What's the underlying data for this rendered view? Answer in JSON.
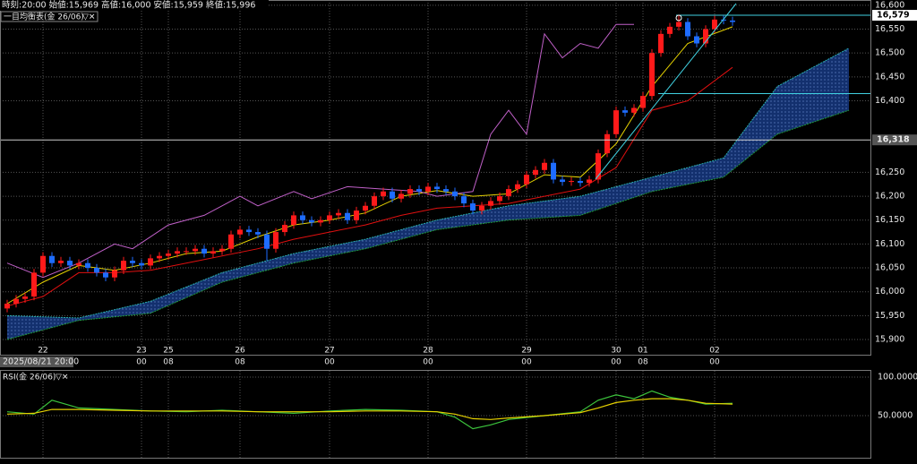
{
  "header": "時刻:20:00 始値:15,969 高値:16,000 安値:15,959 終値:15,996",
  "cursor_label": "2025/08/21 20:00",
  "chart_data": [
    {
      "type": "candlestick",
      "title": "一目均衡表(金 26/06)",
      "open": [
        15965,
        15975,
        15985,
        15990,
        16040,
        16075,
        16060,
        16065,
        16055,
        16060,
        16050,
        16040,
        16030,
        16045,
        16065,
        16060,
        16055,
        16070,
        16075,
        16080,
        16085,
        16085,
        16090,
        16080,
        16085,
        16090,
        16120,
        16130,
        16125,
        16120,
        16090,
        16125,
        16140,
        16160,
        16150,
        16145,
        16150,
        16160,
        16165,
        16150,
        16170,
        16180,
        16200,
        16210,
        16195,
        16205,
        16215,
        16210,
        16220,
        16215,
        16210,
        16200,
        16185,
        16170,
        16180,
        16190,
        16200,
        16215,
        16225,
        16245,
        16255,
        16270,
        16235,
        16230,
        16232,
        16228,
        16235,
        16290,
        16330,
        16380,
        16375,
        16385,
        16410,
        16500,
        16540,
        16555,
        16565,
        16535,
        16520,
        16550,
        16570,
        16568
      ],
      "high": [
        15983,
        15993,
        15998,
        16048,
        16083,
        16083,
        16073,
        16073,
        16068,
        16068,
        16058,
        16048,
        16053,
        16073,
        16073,
        16068,
        16078,
        16083,
        16088,
        16093,
        16093,
        16098,
        16098,
        16093,
        16098,
        16128,
        16138,
        16138,
        16133,
        16128,
        16133,
        16148,
        16168,
        16168,
        16158,
        16158,
        16168,
        16173,
        16173,
        16178,
        16188,
        16208,
        16218,
        16218,
        16213,
        16223,
        16223,
        16228,
        16228,
        16223,
        16218,
        16208,
        16193,
        16188,
        16198,
        16208,
        16223,
        16233,
        16253,
        16263,
        16278,
        16278,
        16243,
        16240,
        16240,
        16243,
        16298,
        16338,
        16388,
        16388,
        16393,
        16418,
        16508,
        16548,
        16563,
        16580,
        16573,
        16543,
        16558,
        16578,
        16578,
        16576
      ],
      "low": [
        15957,
        15967,
        15977,
        15982,
        16032,
        16052,
        16052,
        16047,
        16047,
        16042,
        16032,
        16022,
        16022,
        16037,
        16052,
        16047,
        16047,
        16062,
        16067,
        16072,
        16077,
        16077,
        16072,
        16072,
        16077,
        16082,
        16112,
        16117,
        16112,
        16065,
        16082,
        16117,
        16132,
        16142,
        16137,
        16137,
        16142,
        16152,
        16142,
        16142,
        16162,
        16172,
        16192,
        16187,
        16187,
        16197,
        16202,
        16202,
        16207,
        16202,
        16192,
        16177,
        16162,
        16162,
        16172,
        16182,
        16192,
        16207,
        16217,
        16237,
        16247,
        16227,
        16222,
        16222,
        16220,
        16220,
        16227,
        16282,
        16322,
        16367,
        16367,
        16377,
        16402,
        16492,
        16532,
        16547,
        16527,
        16512,
        16512,
        16542,
        16560,
        16557
      ],
      "close": [
        15975,
        15985,
        15990,
        16040,
        16075,
        16060,
        16065,
        16055,
        16060,
        16050,
        16040,
        16030,
        16045,
        16065,
        16060,
        16055,
        16070,
        16075,
        16080,
        16085,
        16085,
        16090,
        16080,
        16085,
        16090,
        16120,
        16130,
        16125,
        16120,
        16090,
        16125,
        16140,
        16160,
        16150,
        16145,
        16150,
        16160,
        16165,
        16150,
        16170,
        16180,
        16200,
        16210,
        16195,
        16205,
        16215,
        16210,
        16220,
        16215,
        16210,
        16200,
        16185,
        16170,
        16180,
        16190,
        16200,
        16215,
        16225,
        16245,
        16255,
        16270,
        16235,
        16230,
        16232,
        16228,
        16235,
        16290,
        16330,
        16380,
        16375,
        16385,
        16410,
        16500,
        16540,
        16555,
        16565,
        16535,
        16520,
        16550,
        16570,
        16568,
        16565
      ],
      "up_color": "#ff1a1a",
      "down_color": "#1e6cff",
      "ylim": [
        15870,
        16611
      ],
      "yticks": [
        {
          "value": 16600,
          "label": "16,600"
        },
        {
          "value": 16550,
          "label": "16,550"
        },
        {
          "value": 16500,
          "label": "16,500"
        },
        {
          "value": 16450,
          "label": "16,450"
        },
        {
          "value": 16400,
          "label": "16,400"
        },
        {
          "value": 16250,
          "label": "16,250"
        },
        {
          "value": 16200,
          "label": "16,200"
        },
        {
          "value": 16150,
          "label": "16,150"
        },
        {
          "value": 16100,
          "label": "16,100"
        },
        {
          "value": 16050,
          "label": "16,050"
        },
        {
          "value": 16000,
          "label": "16,000"
        },
        {
          "value": 15950,
          "label": "15,950"
        },
        {
          "value": 15900,
          "label": "15,900"
        }
      ],
      "xticks": [
        {
          "value": 4,
          "label": "22"
        },
        {
          "value": 15,
          "label": "23",
          "sublabel": "00"
        },
        {
          "value": 18,
          "label": "25",
          "sublabel": "08"
        },
        {
          "value": 26,
          "label": "26",
          "sublabel": "08"
        },
        {
          "value": 36,
          "label": "27",
          "sublabel": "00"
        },
        {
          "value": 47,
          "label": "28",
          "sublabel": "00"
        },
        {
          "value": 58,
          "label": "29",
          "sublabel": "00"
        },
        {
          "value": 68,
          "label": "30",
          "sublabel": "00"
        },
        {
          "value": 71,
          "label": "01",
          "sublabel": "08"
        },
        {
          "value": 79,
          "label": "02",
          "sublabel": "00"
        }
      ],
      "series": [
        {
          "color": "#e6d200",
          "x": [
            0,
            4,
            8,
            12,
            16,
            20,
            24,
            28,
            32,
            36,
            40,
            44,
            48,
            52,
            56,
            60,
            64,
            68,
            72,
            76,
            81
          ],
          "values": [
            15975,
            16020,
            16055,
            16045,
            16060,
            16080,
            16085,
            16115,
            16140,
            16150,
            16165,
            16200,
            16212,
            16200,
            16205,
            16245,
            16240,
            16310,
            16430,
            16520,
            16555
          ]
        },
        {
          "color": "#e01010",
          "x": [
            0,
            4,
            8,
            12,
            16,
            20,
            24,
            28,
            32,
            36,
            40,
            44,
            48,
            52,
            56,
            60,
            64,
            68,
            72,
            76,
            81
          ],
          "values": [
            15970,
            15990,
            16040,
            16040,
            16045,
            16060,
            16075,
            16090,
            16110,
            16125,
            16140,
            16160,
            16175,
            16180,
            16185,
            16200,
            16215,
            16260,
            16380,
            16400,
            16470
          ]
        },
        {
          "color": "#c060c8",
          "x": [
            0,
            4,
            8,
            12,
            14,
            18,
            22,
            26,
            28,
            32,
            34,
            38,
            42,
            46,
            48,
            52,
            54,
            56,
            58,
            60,
            62,
            64,
            66,
            68,
            70
          ],
          "values": [
            16060,
            16030,
            16060,
            16100,
            16090,
            16140,
            16160,
            16200,
            16180,
            16210,
            16195,
            16220,
            16215,
            16210,
            16200,
            16210,
            16330,
            16380,
            16330,
            16540,
            16490,
            16520,
            16510,
            16560,
            16560
          ]
        }
      ],
      "cloud": {
        "x": [
          0,
          8,
          16,
          24,
          32,
          40,
          48,
          56,
          64,
          72,
          80,
          86,
          94
        ],
        "span_a": [
          15950,
          15945,
          15980,
          16040,
          16080,
          16110,
          16150,
          16180,
          16200,
          16240,
          16280,
          16430,
          16510
        ],
        "span_b": [
          15900,
          15940,
          15955,
          16020,
          16060,
          16090,
          16130,
          16150,
          16160,
          16210,
          16240,
          16330,
          16380
        ],
        "color_a": "#2ab0b0",
        "color_b": "#1f9a3a",
        "fill": "#13306e"
      },
      "price_labels": [
        {
          "value": 16579,
          "label": "16,579"
        },
        {
          "value": 16318,
          "label": "16,318"
        }
      ],
      "levels": [
        16415
      ],
      "grid": true
    },
    {
      "type": "line",
      "title": "RSI(金 26/06)",
      "ylim": [
        0,
        100
      ],
      "yticks": [
        {
          "value": 100,
          "label": "100.0000"
        },
        {
          "value": 50,
          "label": "50.0000"
        }
      ],
      "series": [
        {
          "color": "#3cc43c",
          "x": [
            0,
            3,
            5,
            8,
            12,
            16,
            20,
            24,
            28,
            32,
            36,
            40,
            44,
            48,
            50,
            52,
            54,
            56,
            60,
            64,
            66,
            68,
            70,
            72,
            74,
            76,
            78,
            81
          ],
          "values": [
            55,
            52,
            70,
            60,
            58,
            56,
            55,
            57,
            55,
            53,
            56,
            58,
            57,
            55,
            48,
            33,
            38,
            45,
            50,
            55,
            70,
            77,
            72,
            82,
            74,
            70,
            65,
            66
          ]
        },
        {
          "color": "#e6d200",
          "x": [
            0,
            3,
            5,
            8,
            12,
            16,
            20,
            24,
            28,
            32,
            36,
            40,
            44,
            48,
            50,
            52,
            54,
            56,
            60,
            64,
            66,
            68,
            70,
            72,
            74,
            76,
            78,
            81
          ],
          "values": [
            52,
            53,
            58,
            58,
            57,
            56,
            56,
            56,
            55,
            55,
            55,
            56,
            56,
            55,
            52,
            46,
            45,
            47,
            50,
            54,
            60,
            67,
            70,
            72,
            72,
            70,
            66,
            65
          ]
        }
      ],
      "grid": true
    }
  ]
}
